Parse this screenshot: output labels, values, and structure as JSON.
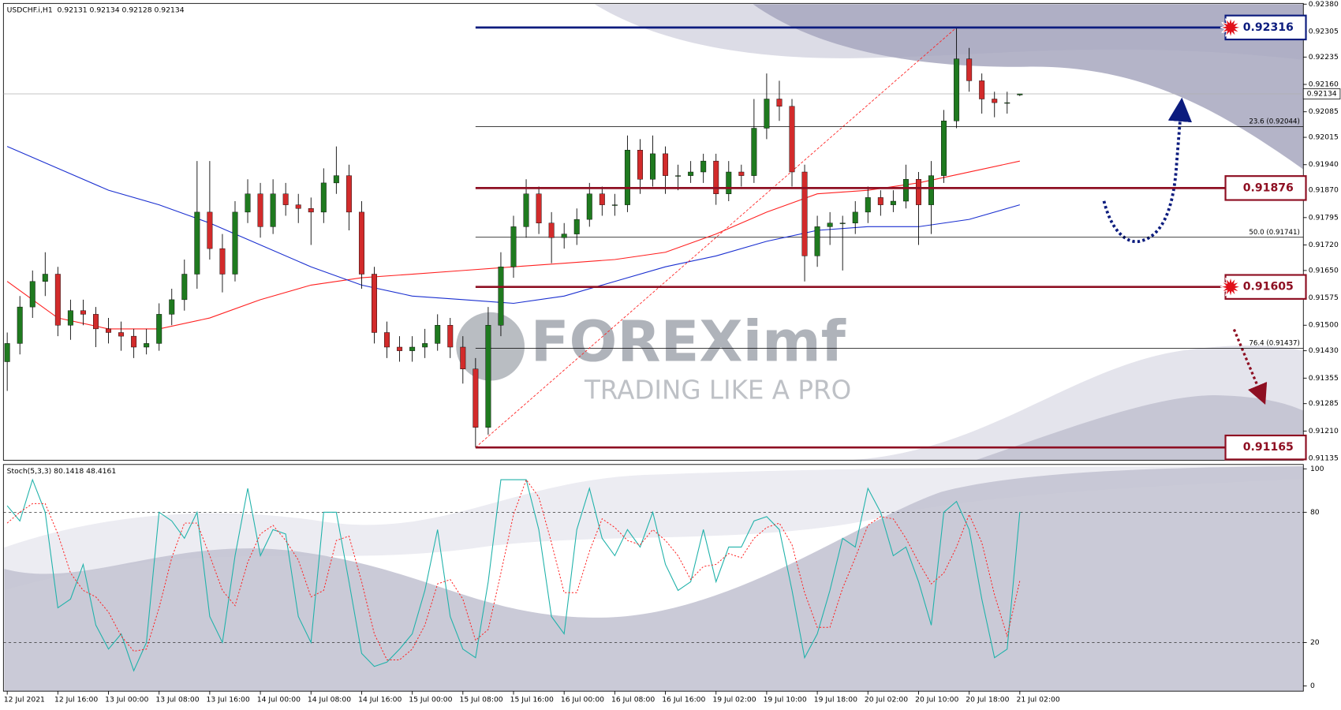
{
  "chart_data": [
    {
      "type": "candlestick",
      "title": "USDCHF.i,H1  0.92131 0.92134 0.92128 0.92134",
      "ohlc": [
        [
          0.914,
          0.9148,
          0.9132,
          0.9145
        ],
        [
          0.9145,
          0.9158,
          0.9142,
          0.9155
        ],
        [
          0.9155,
          0.9165,
          0.9152,
          0.9162
        ],
        [
          0.9162,
          0.917,
          0.9158,
          0.9164
        ],
        [
          0.9164,
          0.9166,
          0.9147,
          0.915
        ],
        [
          0.915,
          0.9157,
          0.9146,
          0.9154
        ],
        [
          0.9154,
          0.9157,
          0.915,
          0.9153
        ],
        [
          0.9153,
          0.9155,
          0.9144,
          0.9149
        ],
        [
          0.9149,
          0.9152,
          0.9145,
          0.9148
        ],
        [
          0.9148,
          0.9151,
          0.9143,
          0.9147
        ],
        [
          0.9147,
          0.9149,
          0.9141,
          0.9144
        ],
        [
          0.9144,
          0.9149,
          0.9142,
          0.9145
        ],
        [
          0.9145,
          0.9156,
          0.9143,
          0.9153
        ],
        [
          0.9153,
          0.916,
          0.915,
          0.9157
        ],
        [
          0.9157,
          0.9168,
          0.9154,
          0.9164
        ],
        [
          0.9164,
          0.9195,
          0.916,
          0.9181
        ],
        [
          0.9181,
          0.9195,
          0.9168,
          0.9171
        ],
        [
          0.9171,
          0.9175,
          0.9159,
          0.9164
        ],
        [
          0.9164,
          0.9184,
          0.9162,
          0.9181
        ],
        [
          0.9181,
          0.919,
          0.9178,
          0.9186
        ],
        [
          0.9186,
          0.9189,
          0.9174,
          0.9177
        ],
        [
          0.9177,
          0.919,
          0.9175,
          0.9186
        ],
        [
          0.9186,
          0.9189,
          0.918,
          0.9183
        ],
        [
          0.9183,
          0.9186,
          0.9178,
          0.9182
        ],
        [
          0.9182,
          0.9185,
          0.9172,
          0.9181
        ],
        [
          0.9181,
          0.9193,
          0.9178,
          0.9189
        ],
        [
          0.9189,
          0.9199,
          0.9186,
          0.9191
        ],
        [
          0.9191,
          0.9194,
          0.9176,
          0.9181
        ],
        [
          0.9181,
          0.9184,
          0.916,
          0.9164
        ],
        [
          0.9164,
          0.9166,
          0.9145,
          0.9148
        ],
        [
          0.9148,
          0.9151,
          0.9141,
          0.9144
        ],
        [
          0.9144,
          0.9147,
          0.914,
          0.9143
        ],
        [
          0.9143,
          0.9147,
          0.914,
          0.9144
        ],
        [
          0.9144,
          0.9149,
          0.9141,
          0.9145
        ],
        [
          0.9145,
          0.9153,
          0.9143,
          0.915
        ],
        [
          0.915,
          0.9152,
          0.9141,
          0.9144
        ],
        [
          0.9144,
          0.9147,
          0.9134,
          0.9138
        ],
        [
          0.9138,
          0.9141,
          0.91165,
          0.9122
        ],
        [
          0.9122,
          0.9155,
          0.912,
          0.915
        ],
        [
          0.915,
          0.917,
          0.9147,
          0.9166
        ],
        [
          0.9166,
          0.918,
          0.9163,
          0.9177
        ],
        [
          0.9177,
          0.919,
          0.9174,
          0.9186
        ],
        [
          0.9186,
          0.9188,
          0.9175,
          0.9178
        ],
        [
          0.9178,
          0.9181,
          0.9167,
          0.9174
        ],
        [
          0.9174,
          0.9178,
          0.9171,
          0.9175
        ],
        [
          0.9175,
          0.9182,
          0.9172,
          0.9179
        ],
        [
          0.9179,
          0.9189,
          0.9177,
          0.9186
        ],
        [
          0.9186,
          0.9188,
          0.918,
          0.9183
        ],
        [
          0.9183,
          0.9186,
          0.918,
          0.9183
        ],
        [
          0.9183,
          0.9202,
          0.9181,
          0.9198
        ],
        [
          0.9198,
          0.9201,
          0.9186,
          0.919
        ],
        [
          0.919,
          0.9202,
          0.9188,
          0.9197
        ],
        [
          0.9197,
          0.9199,
          0.9186,
          0.9191
        ],
        [
          0.9191,
          0.9194,
          0.9187,
          0.9191
        ],
        [
          0.9191,
          0.9195,
          0.9189,
          0.9192
        ],
        [
          0.9192,
          0.9197,
          0.9189,
          0.9195
        ],
        [
          0.9195,
          0.9197,
          0.9183,
          0.9186
        ],
        [
          0.9186,
          0.9195,
          0.9184,
          0.9192
        ],
        [
          0.9192,
          0.9194,
          0.9188,
          0.9191
        ],
        [
          0.9191,
          0.9212,
          0.9189,
          0.9204
        ],
        [
          0.9204,
          0.9219,
          0.9201,
          0.9212
        ],
        [
          0.9212,
          0.9217,
          0.9206,
          0.921
        ],
        [
          0.921,
          0.9212,
          0.9188,
          0.9192
        ],
        [
          0.9192,
          0.9194,
          0.9162,
          0.9169
        ],
        [
          0.9169,
          0.918,
          0.9166,
          0.9177
        ],
        [
          0.9177,
          0.9181,
          0.9172,
          0.9178
        ],
        [
          0.9178,
          0.918,
          0.9165,
          0.9178
        ],
        [
          0.9178,
          0.9184,
          0.9175,
          0.9181
        ],
        [
          0.9181,
          0.9188,
          0.9178,
          0.9185
        ],
        [
          0.9185,
          0.9187,
          0.918,
          0.9183
        ],
        [
          0.9183,
          0.9187,
          0.9181,
          0.9184
        ],
        [
          0.9184,
          0.9194,
          0.9182,
          0.919
        ],
        [
          0.919,
          0.9192,
          0.9172,
          0.9183
        ],
        [
          0.9183,
          0.9195,
          0.9175,
          0.9191
        ],
        [
          0.9191,
          0.9209,
          0.9189,
          0.9206
        ],
        [
          0.9206,
          0.92316,
          0.9204,
          0.9223
        ],
        [
          0.9223,
          0.9226,
          0.9214,
          0.9217
        ],
        [
          0.9217,
          0.9219,
          0.9208,
          0.9212
        ],
        [
          0.9212,
          0.9214,
          0.9207,
          0.9211
        ],
        [
          0.9211,
          0.9214,
          0.9208,
          0.9211
        ],
        [
          0.92131,
          0.92134,
          0.92128,
          0.92134
        ]
      ],
      "colors": {
        "up": "#1f7a1f",
        "down": "#d22b2b",
        "wick": "#000000"
      },
      "series": [
        {
          "color": "#ff2020",
          "x": [
            0,
            4,
            8,
            12,
            16,
            20,
            24,
            28,
            32,
            36,
            40,
            44,
            48,
            52,
            56,
            60,
            64,
            68,
            72,
            76,
            80
          ],
          "values": [
            0.9162,
            0.9152,
            0.9149,
            0.9149,
            0.9152,
            0.9157,
            0.9161,
            0.9163,
            0.9164,
            0.9165,
            0.9166,
            0.9167,
            0.9168,
            0.917,
            0.9175,
            0.9181,
            0.9186,
            0.9187,
            0.9189,
            0.9192,
            0.9195
          ]
        },
        {
          "color": "#1a2fd0",
          "x": [
            0,
            4,
            8,
            12,
            16,
            20,
            24,
            28,
            32,
            36,
            40,
            44,
            48,
            52,
            56,
            60,
            64,
            68,
            72,
            76,
            80
          ],
          "values": [
            0.9199,
            0.9193,
            0.9187,
            0.9183,
            0.9178,
            0.9172,
            0.9166,
            0.9161,
            0.9158,
            0.9157,
            0.9156,
            0.9158,
            0.9162,
            0.9166,
            0.9169,
            0.9173,
            0.9176,
            0.9177,
            0.9177,
            0.9179,
            0.9183
          ]
        }
      ],
      "xlim": [
        -0.3,
        102.4
      ],
      "ylim": [
        0.9113,
        0.92382
      ],
      "yticks": [
        {
          "value": 0.9238,
          "label": "0.92380"
        },
        0.92305,
        0.92235,
        {
          "value": 0.9216,
          "label": "0.92160"
        },
        0.92085,
        0.92015,
        {
          "value": 0.9194,
          "label": "0.91940"
        },
        {
          "value": 0.9187,
          "label": "0.91870"
        },
        0.91795,
        {
          "value": 0.9172,
          "label": "0.91720"
        },
        {
          "value": 0.9165,
          "label": "0.91650"
        },
        0.91575,
        {
          "value": 0.915,
          "label": "0.91500"
        },
        {
          "value": 0.9143,
          "label": "0.91430"
        },
        0.91355,
        0.91285,
        {
          "value": 0.9121,
          "label": "0.91210"
        },
        0.91135
      ],
      "levels": [
        {
          "value": 0.92316,
          "color": "#0c1c7e"
        },
        {
          "value": 0.91876,
          "color": "#8e0f22"
        },
        {
          "value": 0.91605,
          "color": "#8e0f22"
        },
        {
          "value": 0.91165,
          "color": "#8e0f22"
        }
      ],
      "fib": [
        {
          "value": 0.92044,
          "label": "23.6 (0.92044)"
        },
        {
          "value": 0.91741,
          "label": "50.0 (0.91741)"
        },
        {
          "value": 0.91437,
          "label": "76.4 (0.91437)"
        }
      ],
      "watermark": {
        "brand": "FOREXimf",
        "tagline": "TRADING LIKE A PRO"
      }
    },
    {
      "type": "line",
      "title": "Stoch(5,3,3) 80.1418 48.4161",
      "series": [
        {
          "color": "#20b2aa",
          "dash": false,
          "values": [
            83,
            76,
            95,
            80,
            36,
            40,
            56,
            28,
            17,
            24,
            7,
            20,
            80,
            76,
            68,
            80,
            32,
            20,
            60,
            91,
            60,
            72,
            70,
            32,
            20,
            80,
            80,
            48,
            15,
            9,
            11,
            17,
            24,
            44,
            72,
            32,
            17,
            13,
            48,
            95,
            95,
            95,
            72,
            32,
            24,
            72,
            91,
            68,
            60,
            72,
            64,
            80,
            56,
            44,
            48,
            72,
            48,
            64,
            64,
            76,
            78,
            72,
            44,
            13,
            24,
            44,
            68,
            64,
            91,
            80,
            60,
            64,
            48,
            28,
            80,
            85,
            72,
            40,
            13,
            17,
            80.1418
          ]
        },
        {
          "color": "#ff2020",
          "dash": true,
          "values": [
            75,
            80,
            84,
            84,
            70,
            52,
            44,
            41,
            34,
            23,
            16,
            17,
            36,
            59,
            75,
            75,
            60,
            44,
            37,
            57,
            70,
            74,
            67,
            58,
            41,
            44,
            67,
            69,
            48,
            24,
            12,
            12,
            17,
            28,
            47,
            49,
            40,
            21,
            26,
            52,
            79,
            95,
            87,
            66,
            43,
            43,
            62,
            77,
            73,
            67,
            65,
            72,
            67,
            60,
            49,
            55,
            56,
            61,
            59,
            68,
            73,
            75,
            65,
            43,
            27,
            27,
            45,
            59,
            74,
            78,
            77,
            68,
            57,
            47,
            52,
            64,
            79,
            66,
            42,
            23,
            48.4161
          ]
        }
      ],
      "xlim": [
        -0.3,
        102.4
      ],
      "ylim": [
        -2.4,
        102
      ],
      "yticks": [
        0,
        20,
        80,
        100
      ],
      "levels": [
        80,
        20
      ],
      "xticks": [
        {
          "value": 0,
          "label": "12 Jul 2021"
        },
        {
          "value": 4,
          "label": "12 Jul 16:00"
        },
        {
          "value": 8,
          "label": "13 Jul 00:00"
        },
        {
          "value": 12,
          "label": "13 Jul 08:00"
        },
        {
          "value": 16,
          "label": "13 Jul 16:00"
        },
        {
          "value": 20,
          "label": "14 Jul 00:00"
        },
        {
          "value": 24,
          "label": "14 Jul 08:00"
        },
        {
          "value": 28,
          "label": "14 Jul 16:00"
        },
        {
          "value": 32,
          "label": "15 Jul 00:00"
        },
        {
          "value": 36,
          "label": "15 Jul 08:00"
        },
        {
          "value": 40,
          "label": "15 Jul 16:00"
        },
        {
          "value": 44,
          "label": "16 Jul 00:00"
        },
        {
          "value": 48,
          "label": "16 Jul 08:00"
        },
        {
          "value": 52,
          "label": "16 Jul 16:00"
        },
        {
          "value": 56,
          "label": "19 Jul 02:00"
        },
        {
          "value": 60,
          "label": "19 Jul 10:00"
        },
        {
          "value": 64,
          "label": "19 Jul 18:00"
        },
        {
          "value": 68,
          "label": "20 Jul 02:00"
        },
        {
          "value": 72,
          "label": "20 Jul 10:00"
        },
        {
          "value": 76,
          "label": "20 Jul 18:00"
        },
        {
          "value": 80,
          "label": "21 Jul 02:00"
        }
      ]
    }
  ]
}
